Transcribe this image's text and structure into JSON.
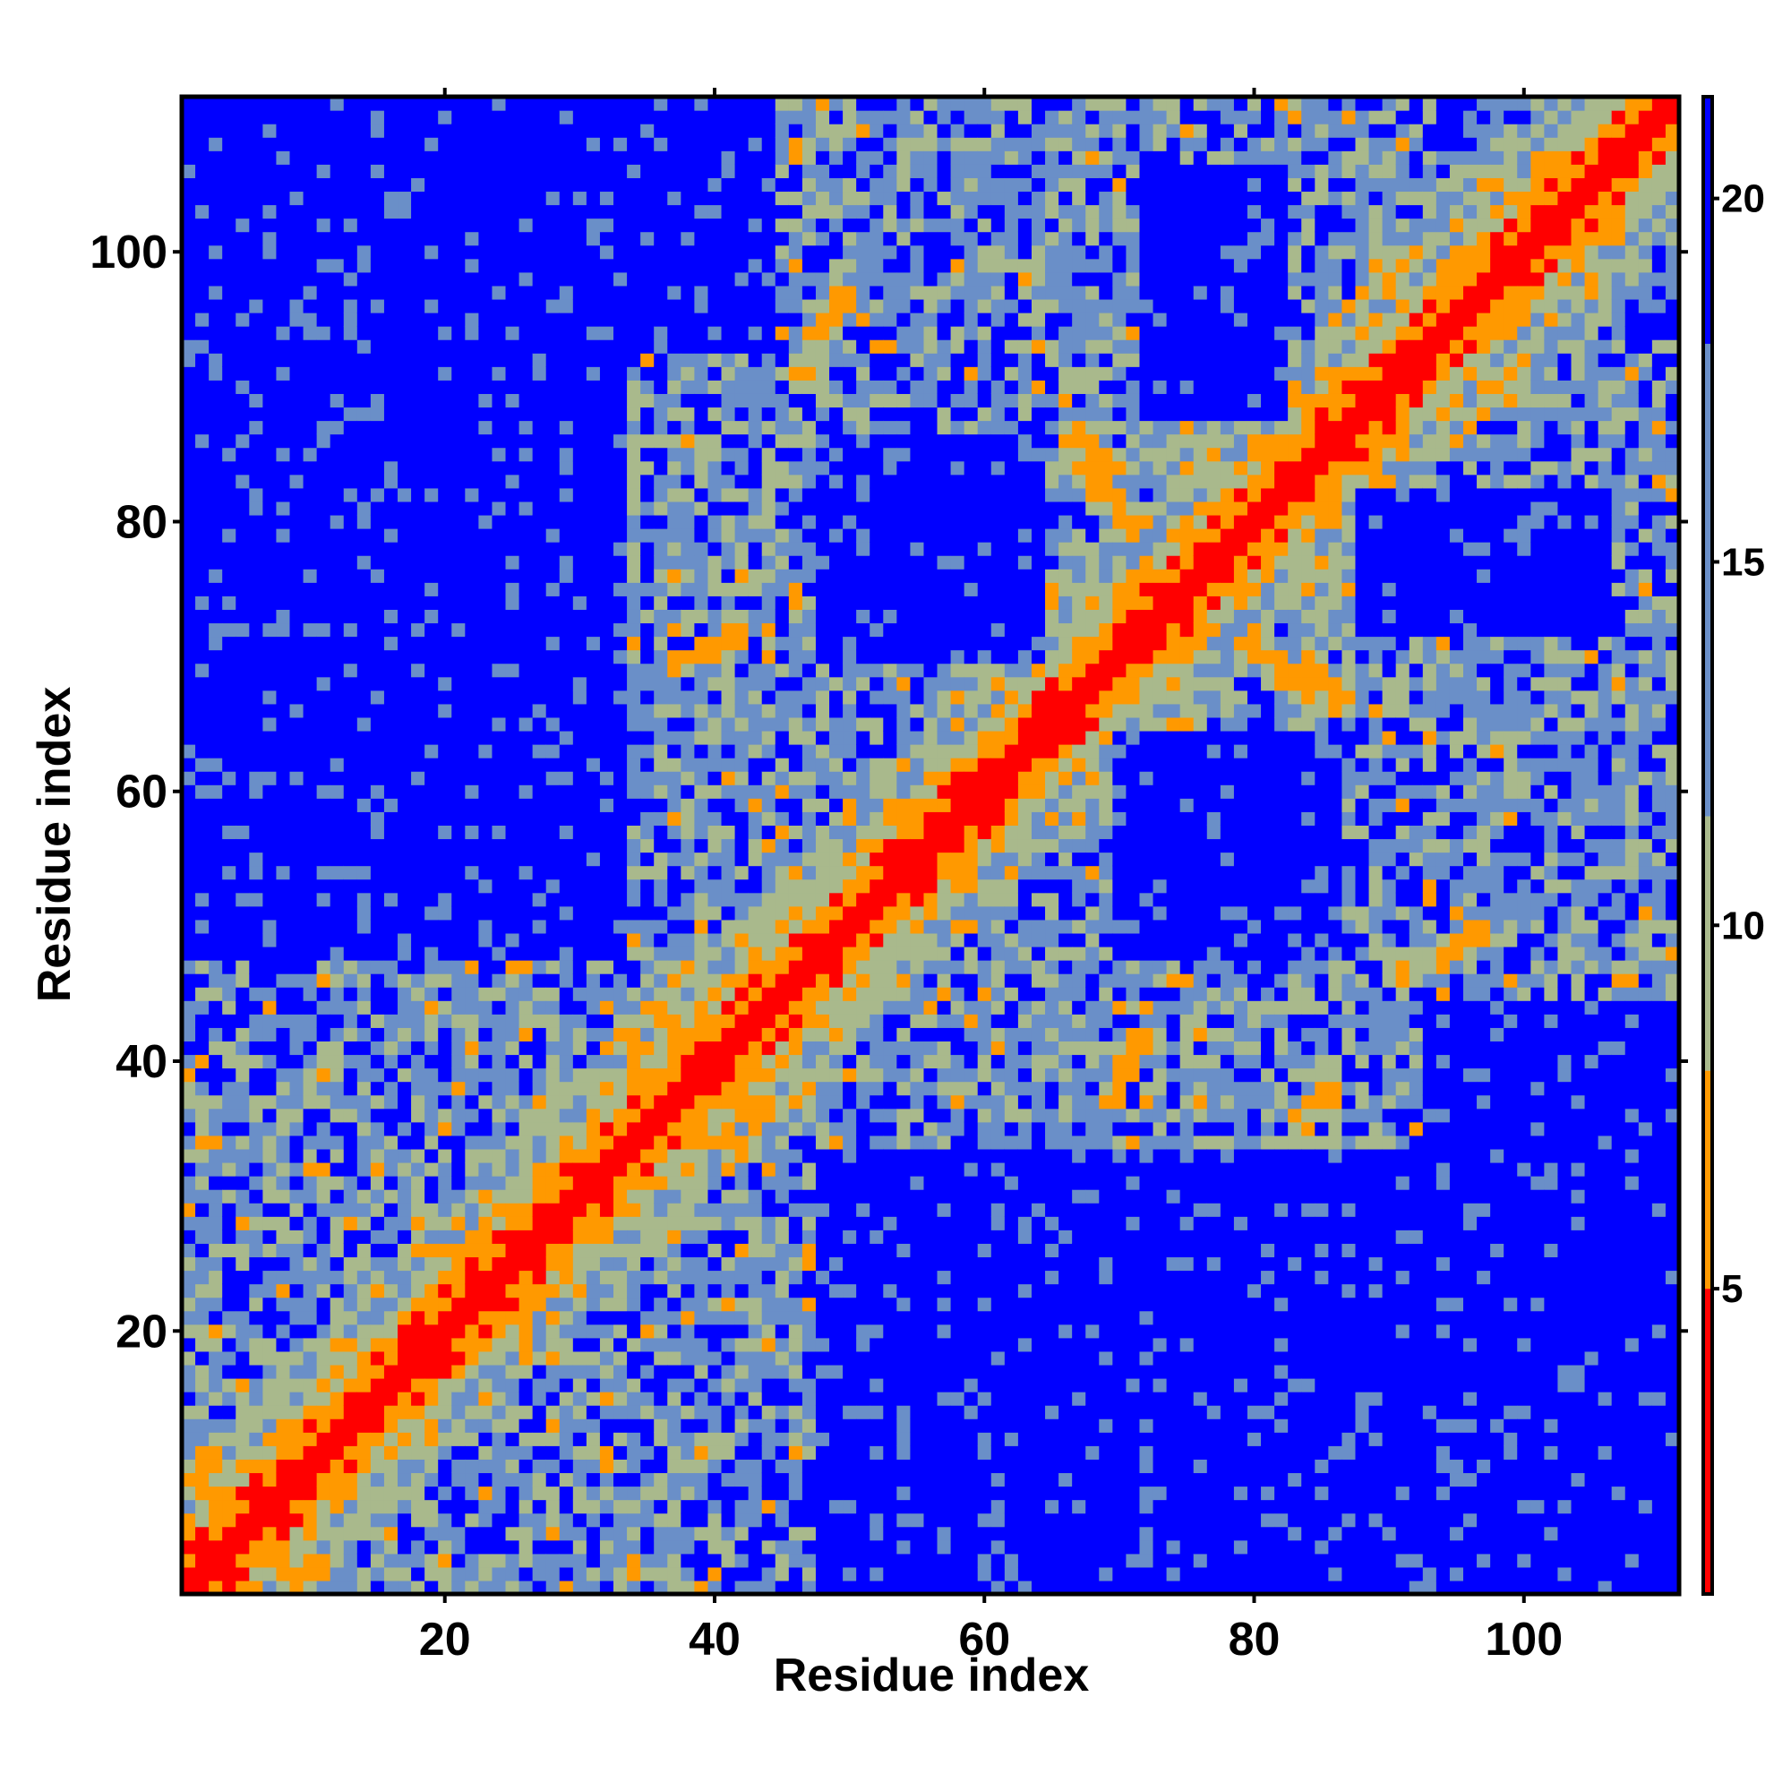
{
  "chart_data": {
    "type": "heatmap",
    "title": "",
    "xlabel": "Residue index",
    "ylabel": "Residue index",
    "n_residues": 111,
    "xlim": [
      0.5,
      111.5
    ],
    "ylim": [
      0.5,
      111.5
    ],
    "x_ticks": [
      20,
      40,
      60,
      80,
      100
    ],
    "y_ticks": [
      20,
      40,
      60,
      80,
      100
    ],
    "colorbar": {
      "range": [
        0.8,
        21.4
      ],
      "ticks": [
        5,
        10,
        15,
        20
      ],
      "colors": [
        {
          "from": 0.8,
          "to": 5.0,
          "color": "#ff0000"
        },
        {
          "from": 5.0,
          "to": 8.0,
          "color": "#ff9900"
        },
        {
          "from": 8.0,
          "to": 11.5,
          "color": "#a9b98c"
        },
        {
          "from": 11.5,
          "to": 18.0,
          "color": "#6a8fc8"
        },
        {
          "from": 18.0,
          "to": 21.4,
          "color": "#0000ff"
        }
      ]
    },
    "far_blocks": [
      {
        "x": [
          48,
          111
        ],
        "y": [
          1,
          33
        ]
      },
      {
        "x": [
          1,
          33
        ],
        "y": [
          48,
          111
        ]
      },
      {
        "x": [
          93,
          111
        ],
        "y": [
          30,
          44
        ]
      },
      {
        "x": [
          30,
          44
        ],
        "y": [
          93,
          111
        ]
      },
      {
        "x": [
          12,
          28
        ],
        "y": [
          70,
          100
        ]
      },
      {
        "x": [
          70,
          100
        ],
        "y": [
          12,
          28
        ]
      },
      {
        "x": [
          50,
          62
        ],
        "y": [
          72,
          86
        ]
      },
      {
        "x": [
          72,
          86
        ],
        "y": [
          50,
          62
        ]
      },
      {
        "x": [
          72,
          82
        ],
        "y": [
          88,
          106
        ]
      },
      {
        "x": [
          88,
          106
        ],
        "y": [
          72,
          82
        ]
      },
      {
        "x": [
          70,
          84
        ],
        "y": [
          48,
          64
        ]
      },
      {
        "x": [
          48,
          64
        ],
        "y": [
          70,
          84
        ]
      }
    ],
    "contact_segments": [
      {
        "from": [
          2,
          11
        ],
        "to": [
          9,
          2
        ]
      },
      {
        "from": [
          11,
          2
        ],
        "to": [
          2,
          9
        ]
      },
      {
        "from": [
          33,
          42
        ],
        "to": [
          42,
          33
        ]
      },
      {
        "from": [
          35,
          44
        ],
        "to": [
          44,
          36
        ]
      },
      {
        "from": [
          66,
          85
        ],
        "to": [
          71,
          80
        ]
      },
      {
        "from": [
          85,
          66
        ],
        "to": [
          80,
          71
        ]
      },
      {
        "from": [
          84,
          70
        ],
        "to": [
          87,
          66
        ]
      },
      {
        "from": [
          70,
          84
        ],
        "to": [
          66,
          87
        ]
      },
      {
        "from": [
          37,
          69
        ],
        "to": [
          42,
          72
        ]
      },
      {
        "from": [
          69,
          37
        ],
        "to": [
          72,
          42
        ]
      },
      {
        "from": [
          46,
          91
        ],
        "to": [
          50,
          97
        ]
      },
      {
        "from": [
          91,
          46
        ],
        "to": [
          97,
          50
        ]
      },
      {
        "from": [
          83,
          35
        ],
        "to": [
          86,
          38
        ]
      }
    ]
  }
}
